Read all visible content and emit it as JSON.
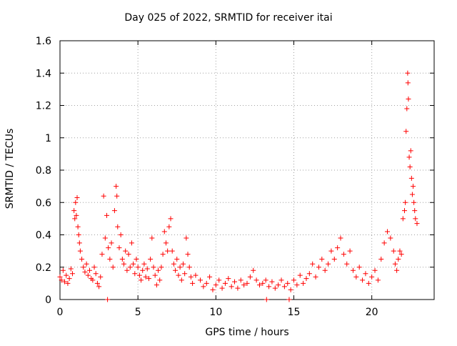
{
  "chart_data": {
    "type": "scatter",
    "title": "Day 025 of 2022, SRMTID for receiver itai",
    "xlabel": "GPS time / hours",
    "ylabel": "SRMTID / TECUs",
    "xlim": [
      0,
      24
    ],
    "ylim": [
      0,
      1.6
    ],
    "xticks": [
      0,
      5,
      10,
      15,
      20
    ],
    "yticks": [
      0,
      0.2,
      0.4,
      0.6,
      0.8,
      1,
      1.2,
      1.4,
      1.6
    ],
    "xtick_labels": [
      "0",
      "5",
      "10",
      "15",
      "20"
    ],
    "ytick_labels": [
      "0",
      "0.2",
      "0.4",
      "0.6",
      "0.8",
      "1",
      "1.2",
      "1.4",
      "1.6"
    ],
    "grid": true,
    "marker": "+",
    "color": "#ff0000",
    "series": [
      {
        "name": "SRMTID",
        "points": [
          [
            0.0,
            0.14
          ],
          [
            0.1,
            0.12
          ],
          [
            0.2,
            0.18
          ],
          [
            0.3,
            0.11
          ],
          [
            0.4,
            0.15
          ],
          [
            0.5,
            0.1
          ],
          [
            0.6,
            0.13
          ],
          [
            0.7,
            0.19
          ],
          [
            0.8,
            0.16
          ],
          [
            0.9,
            0.55
          ],
          [
            0.95,
            0.5
          ],
          [
            1.0,
            0.6
          ],
          [
            1.05,
            0.52
          ],
          [
            1.1,
            0.63
          ],
          [
            1.15,
            0.45
          ],
          [
            1.2,
            0.4
          ],
          [
            1.25,
            0.35
          ],
          [
            1.3,
            0.3
          ],
          [
            1.4,
            0.25
          ],
          [
            1.5,
            0.2
          ],
          [
            1.6,
            0.17
          ],
          [
            1.7,
            0.22
          ],
          [
            1.8,
            0.15
          ],
          [
            1.9,
            0.18
          ],
          [
            2.0,
            0.13
          ],
          [
            2.1,
            0.12
          ],
          [
            2.2,
            0.2
          ],
          [
            2.3,
            0.16
          ],
          [
            2.4,
            0.1
          ],
          [
            2.5,
            0.08
          ],
          [
            2.6,
            0.14
          ],
          [
            2.7,
            0.28
          ],
          [
            2.8,
            0.64
          ],
          [
            2.9,
            0.38
          ],
          [
            3.0,
            0.52
          ],
          [
            3.05,
            0.0
          ],
          [
            3.1,
            0.32
          ],
          [
            3.2,
            0.25
          ],
          [
            3.3,
            0.35
          ],
          [
            3.4,
            0.2
          ],
          [
            3.5,
            0.55
          ],
          [
            3.6,
            0.7
          ],
          [
            3.65,
            0.64
          ],
          [
            3.7,
            0.45
          ],
          [
            3.8,
            0.32
          ],
          [
            3.9,
            0.4
          ],
          [
            4.0,
            0.25
          ],
          [
            4.1,
            0.22
          ],
          [
            4.2,
            0.3
          ],
          [
            4.3,
            0.18
          ],
          [
            4.4,
            0.28
          ],
          [
            4.5,
            0.2
          ],
          [
            4.6,
            0.35
          ],
          [
            4.7,
            0.22
          ],
          [
            4.8,
            0.16
          ],
          [
            4.9,
            0.25
          ],
          [
            5.0,
            0.2
          ],
          [
            5.1,
            0.15
          ],
          [
            5.2,
            0.12
          ],
          [
            5.3,
            0.18
          ],
          [
            5.4,
            0.22
          ],
          [
            5.5,
            0.14
          ],
          [
            5.6,
            0.19
          ],
          [
            5.7,
            0.13
          ],
          [
            5.8,
            0.25
          ],
          [
            5.9,
            0.38
          ],
          [
            6.0,
            0.2
          ],
          [
            6.1,
            0.15
          ],
          [
            6.2,
            0.09
          ],
          [
            6.3,
            0.18
          ],
          [
            6.4,
            0.12
          ],
          [
            6.5,
            0.2
          ],
          [
            6.6,
            0.28
          ],
          [
            6.7,
            0.42
          ],
          [
            6.8,
            0.35
          ],
          [
            6.9,
            0.3
          ],
          [
            7.0,
            0.45
          ],
          [
            7.1,
            0.5
          ],
          [
            7.2,
            0.3
          ],
          [
            7.3,
            0.22
          ],
          [
            7.4,
            0.18
          ],
          [
            7.5,
            0.25
          ],
          [
            7.6,
            0.15
          ],
          [
            7.7,
            0.2
          ],
          [
            7.8,
            0.12
          ],
          [
            7.9,
            0.22
          ],
          [
            8.0,
            0.16
          ],
          [
            8.1,
            0.38
          ],
          [
            8.2,
            0.28
          ],
          [
            8.3,
            0.2
          ],
          [
            8.4,
            0.14
          ],
          [
            8.5,
            0.1
          ],
          [
            8.7,
            0.15
          ],
          [
            9.0,
            0.12
          ],
          [
            9.2,
            0.08
          ],
          [
            9.4,
            0.1
          ],
          [
            9.6,
            0.14
          ],
          [
            9.8,
            0.06
          ],
          [
            10.0,
            0.09
          ],
          [
            10.2,
            0.12
          ],
          [
            10.4,
            0.07
          ],
          [
            10.6,
            0.1
          ],
          [
            10.8,
            0.13
          ],
          [
            11.0,
            0.08
          ],
          [
            11.2,
            0.11
          ],
          [
            11.4,
            0.07
          ],
          [
            11.6,
            0.12
          ],
          [
            11.8,
            0.09
          ],
          [
            12.0,
            0.1
          ],
          [
            12.2,
            0.14
          ],
          [
            12.4,
            0.18
          ],
          [
            12.6,
            0.12
          ],
          [
            12.8,
            0.09
          ],
          [
            13.0,
            0.1
          ],
          [
            13.2,
            0.12
          ],
          [
            13.25,
            0.0
          ],
          [
            13.4,
            0.08
          ],
          [
            13.6,
            0.11
          ],
          [
            13.8,
            0.07
          ],
          [
            14.0,
            0.09
          ],
          [
            14.2,
            0.12
          ],
          [
            14.4,
            0.08
          ],
          [
            14.6,
            0.1
          ],
          [
            14.7,
            0.0
          ],
          [
            14.8,
            0.06
          ],
          [
            15.0,
            0.12
          ],
          [
            15.2,
            0.09
          ],
          [
            15.4,
            0.15
          ],
          [
            15.6,
            0.1
          ],
          [
            15.8,
            0.13
          ],
          [
            16.0,
            0.16
          ],
          [
            16.2,
            0.22
          ],
          [
            16.4,
            0.14
          ],
          [
            16.6,
            0.2
          ],
          [
            16.8,
            0.25
          ],
          [
            17.0,
            0.18
          ],
          [
            17.2,
            0.22
          ],
          [
            17.4,
            0.3
          ],
          [
            17.6,
            0.25
          ],
          [
            17.8,
            0.32
          ],
          [
            18.0,
            0.38
          ],
          [
            18.2,
            0.28
          ],
          [
            18.4,
            0.22
          ],
          [
            18.6,
            0.3
          ],
          [
            18.8,
            0.18
          ],
          [
            19.0,
            0.14
          ],
          [
            19.2,
            0.2
          ],
          [
            19.4,
            0.12
          ],
          [
            19.6,
            0.16
          ],
          [
            19.8,
            0.1
          ],
          [
            20.0,
            0.14
          ],
          [
            20.2,
            0.18
          ],
          [
            20.4,
            0.12
          ],
          [
            20.6,
            0.25
          ],
          [
            20.8,
            0.35
          ],
          [
            21.0,
            0.42
          ],
          [
            21.2,
            0.38
          ],
          [
            21.4,
            0.3
          ],
          [
            21.5,
            0.22
          ],
          [
            21.6,
            0.18
          ],
          [
            21.7,
            0.25
          ],
          [
            21.8,
            0.3
          ],
          [
            21.9,
            0.28
          ],
          [
            22.0,
            0.5
          ],
          [
            22.1,
            0.55
          ],
          [
            22.15,
            0.6
          ],
          [
            22.2,
            1.04
          ],
          [
            22.25,
            1.18
          ],
          [
            22.3,
            1.4
          ],
          [
            22.32,
            1.34
          ],
          [
            22.35,
            1.24
          ],
          [
            22.4,
            0.88
          ],
          [
            22.45,
            0.82
          ],
          [
            22.5,
            0.92
          ],
          [
            22.55,
            0.75
          ],
          [
            22.6,
            0.65
          ],
          [
            22.65,
            0.7
          ],
          [
            22.7,
            0.6
          ],
          [
            22.75,
            0.55
          ],
          [
            22.8,
            0.5
          ],
          [
            22.9,
            0.47
          ]
        ]
      }
    ]
  }
}
